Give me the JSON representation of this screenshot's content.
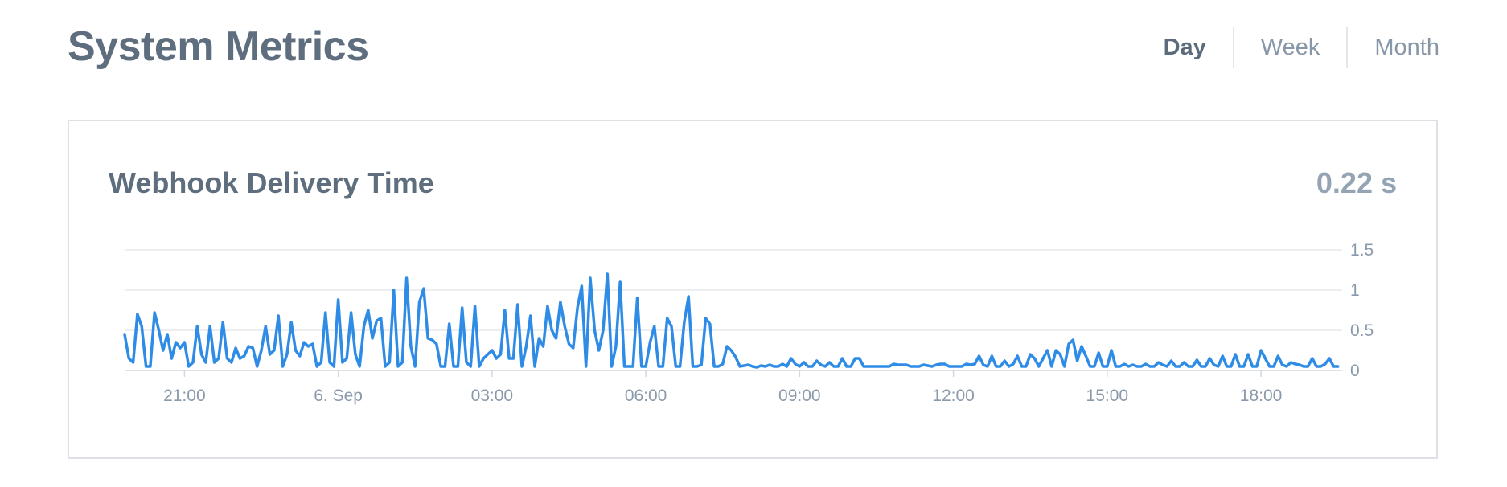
{
  "header": {
    "title": "System Metrics",
    "range_tabs": [
      {
        "label": "Day",
        "active": true
      },
      {
        "label": "Week",
        "active": false
      },
      {
        "label": "Month",
        "active": false
      }
    ]
  },
  "card": {
    "title": "Webhook Delivery Time",
    "current_value": "0.22 s"
  },
  "colors": {
    "series": "#2f8ce6",
    "grid": "#e6e9ec",
    "text": "#5b6b7b"
  },
  "chart_data": {
    "type": "line",
    "title": "",
    "xlabel": "",
    "ylabel": "",
    "x_range": [
      "2023-09-05 19:50",
      "2023-09-06 19:35"
    ],
    "ylim": [
      0,
      1.5
    ],
    "y_ticks": [
      0,
      0.5,
      1,
      1.5
    ],
    "x_ticks": [
      {
        "label": "21:00",
        "value": "2023-09-05 21:00"
      },
      {
        "label": "6. Sep",
        "value": "2023-09-06 00:00"
      },
      {
        "label": "03:00",
        "value": "2023-09-06 03:00"
      },
      {
        "label": "06:00",
        "value": "2023-09-06 06:00"
      },
      {
        "label": "09:00",
        "value": "2023-09-06 09:00"
      },
      {
        "label": "12:00",
        "value": "2023-09-06 12:00"
      },
      {
        "label": "15:00",
        "value": "2023-09-06 15:00"
      },
      {
        "label": "18:00",
        "value": "2023-09-06 18:00"
      }
    ],
    "y_axis_position": "right",
    "grid": true,
    "legend": "none",
    "series": [
      {
        "x_start": "2023-09-05 19:50",
        "x_step_minutes": 5,
        "values": [
          0.45,
          0.15,
          0.1,
          0.7,
          0.55,
          0.05,
          0.05,
          0.72,
          0.5,
          0.25,
          0.45,
          0.15,
          0.35,
          0.28,
          0.35,
          0.05,
          0.1,
          0.55,
          0.2,
          0.1,
          0.55,
          0.1,
          0.15,
          0.6,
          0.15,
          0.1,
          0.28,
          0.15,
          0.18,
          0.3,
          0.28,
          0.05,
          0.25,
          0.55,
          0.2,
          0.25,
          0.68,
          0.05,
          0.2,
          0.6,
          0.25,
          0.18,
          0.35,
          0.3,
          0.33,
          0.05,
          0.1,
          0.72,
          0.1,
          0.05,
          0.88,
          0.1,
          0.15,
          0.72,
          0.2,
          0.05,
          0.55,
          0.75,
          0.4,
          0.62,
          0.65,
          0.05,
          0.1,
          1.0,
          0.05,
          0.1,
          1.15,
          0.3,
          0.05,
          0.85,
          1.02,
          0.4,
          0.38,
          0.33,
          0.05,
          0.05,
          0.58,
          0.05,
          0.05,
          0.78,
          0.1,
          0.05,
          0.8,
          0.05,
          0.15,
          0.2,
          0.25,
          0.15,
          0.2,
          0.75,
          0.15,
          0.15,
          0.82,
          0.05,
          0.3,
          0.68,
          0.05,
          0.4,
          0.3,
          0.8,
          0.5,
          0.4,
          0.85,
          0.55,
          0.33,
          0.28,
          0.78,
          1.05,
          0.05,
          1.15,
          0.5,
          0.25,
          0.5,
          1.2,
          0.05,
          0.3,
          1.1,
          0.05,
          0.05,
          0.05,
          0.9,
          0.05,
          0.05,
          0.35,
          0.55,
          0.05,
          0.05,
          0.65,
          0.55,
          0.05,
          0.05,
          0.6,
          0.92,
          0.05,
          0.05,
          0.07,
          0.65,
          0.58,
          0.05,
          0.05,
          0.08,
          0.3,
          0.25,
          0.17,
          0.05,
          0.06,
          0.07,
          0.05,
          0.04,
          0.06,
          0.05,
          0.07,
          0.05,
          0.05,
          0.08,
          0.05,
          0.15,
          0.08,
          0.05,
          0.1,
          0.05,
          0.05,
          0.12,
          0.07,
          0.05,
          0.1,
          0.05,
          0.05,
          0.15,
          0.05,
          0.05,
          0.15,
          0.15,
          0.05,
          0.05,
          0.05,
          0.05,
          0.05,
          0.05,
          0.05,
          0.08,
          0.07,
          0.07,
          0.07,
          0.05,
          0.05,
          0.05,
          0.07,
          0.06,
          0.05,
          0.07,
          0.08,
          0.08,
          0.05,
          0.05,
          0.05,
          0.05,
          0.08,
          0.07,
          0.08,
          0.18,
          0.07,
          0.05,
          0.18,
          0.05,
          0.05,
          0.12,
          0.05,
          0.08,
          0.18,
          0.05,
          0.05,
          0.2,
          0.15,
          0.05,
          0.15,
          0.25,
          0.05,
          0.25,
          0.2,
          0.05,
          0.33,
          0.38,
          0.12,
          0.3,
          0.18,
          0.05,
          0.05,
          0.22,
          0.05,
          0.05,
          0.25,
          0.05,
          0.05,
          0.08,
          0.05,
          0.07,
          0.05,
          0.05,
          0.08,
          0.05,
          0.05,
          0.1,
          0.07,
          0.05,
          0.12,
          0.05,
          0.05,
          0.1,
          0.05,
          0.05,
          0.13,
          0.05,
          0.05,
          0.15,
          0.07,
          0.05,
          0.18,
          0.05,
          0.05,
          0.2,
          0.05,
          0.05,
          0.2,
          0.05,
          0.05,
          0.25,
          0.15,
          0.05,
          0.05,
          0.18,
          0.07,
          0.05,
          0.1,
          0.08,
          0.07,
          0.05,
          0.05,
          0.15,
          0.05,
          0.05,
          0.08,
          0.15,
          0.05,
          0.05
        ]
      }
    ]
  }
}
